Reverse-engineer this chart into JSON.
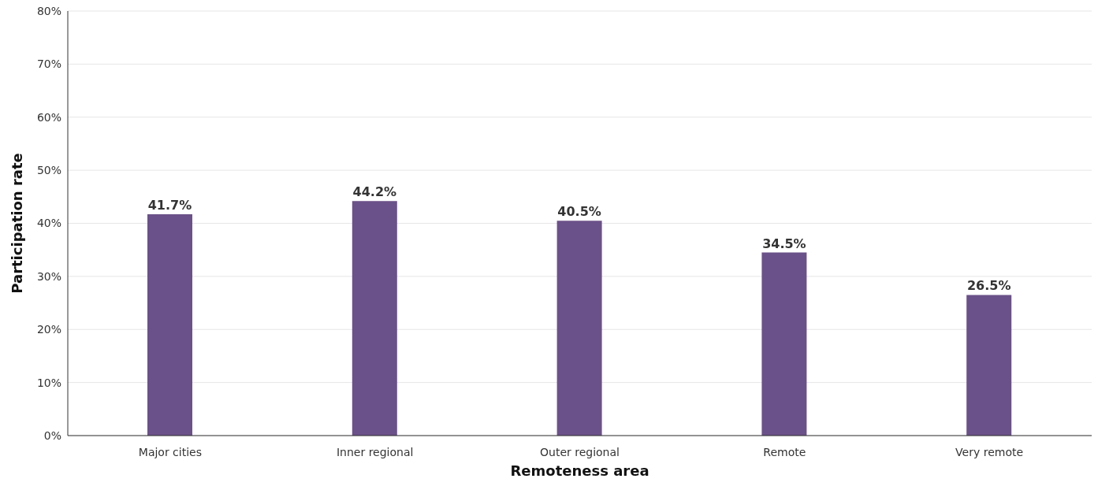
{
  "chart_data": {
    "type": "bar",
    "xlabel": "Remoteness area",
    "ylabel": "Participation rate",
    "categories": [
      "Major cities",
      "Inner regional",
      "Outer regional",
      "Remote",
      "Very remote"
    ],
    "values": [
      41.7,
      44.2,
      40.5,
      34.5,
      26.5
    ],
    "value_labels": [
      "41.7%",
      "44.2%",
      "40.5%",
      "34.5%",
      "26.5%"
    ],
    "color": "#6b5189",
    "ylim": [
      0,
      80
    ],
    "yticks": [
      {
        "value": 0,
        "label": "0%"
      },
      {
        "value": 10,
        "label": "10%"
      },
      {
        "value": 20,
        "label": "20%"
      },
      {
        "value": 30,
        "label": "30%"
      },
      {
        "value": 40,
        "label": "40%"
      },
      {
        "value": 50,
        "label": "50%"
      },
      {
        "value": 60,
        "label": "60%"
      },
      {
        "value": 70,
        "label": "70%"
      },
      {
        "value": 80,
        "label": "80%"
      }
    ],
    "grid": "y",
    "legend": false
  }
}
